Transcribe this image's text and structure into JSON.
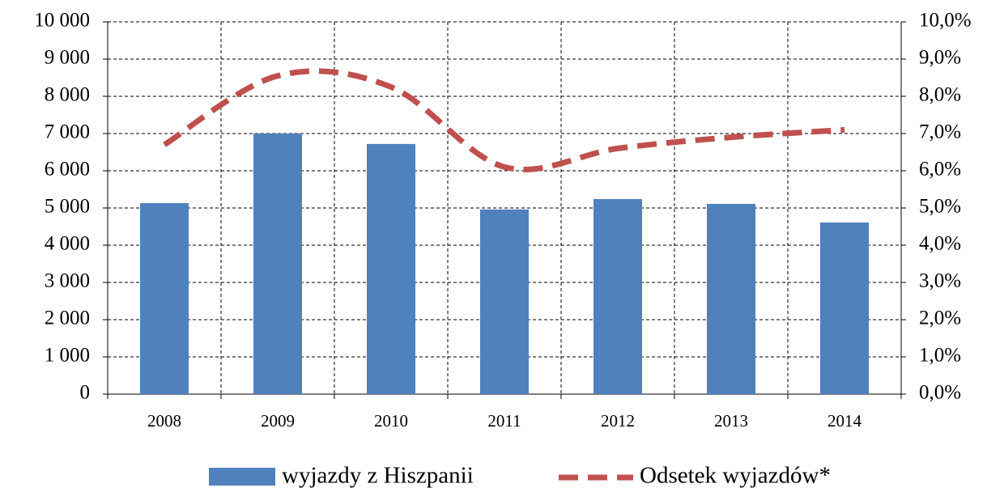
{
  "chart_data": {
    "type": "bar-line",
    "categories": [
      "2008",
      "2009",
      "2010",
      "2011",
      "2012",
      "2013",
      "2014"
    ],
    "series": [
      {
        "name": "wyjazdy z Hiszpanii",
        "color": "#4f81bd",
        "values": [
          5130,
          7000,
          6720,
          4960,
          5240,
          5110,
          4610
        ]
      },
      {
        "name": "Odsetek wyjazdów*",
        "color": "#c0504d",
        "axis": "y2",
        "values": [
          6.7,
          8.55,
          8.25,
          6.1,
          6.6,
          6.9,
          7.1
        ]
      }
    ],
    "ylim": [
      0,
      10000
    ],
    "yticks": [
      0,
      {
        "value": 1000,
        "label": "1 000"
      },
      {
        "value": 2000,
        "label": "2 000"
      },
      {
        "value": 3000,
        "label": "3 000"
      },
      {
        "value": 4000,
        "label": "4 000"
      },
      {
        "value": 5000,
        "label": "5 000"
      },
      {
        "value": 6000,
        "label": "6 000"
      },
      {
        "value": 7000,
        "label": "7 000"
      },
      {
        "value": 8000,
        "label": "8 000"
      },
      {
        "value": 9000,
        "label": "9 000"
      },
      {
        "value": 10000,
        "label": "10 000"
      }
    ],
    "y2lim": [
      0,
      10
    ],
    "y2ticks": [
      {
        "value": 0,
        "label": "0,0%"
      },
      {
        "value": 1,
        "label": "1,0%"
      },
      {
        "value": 2,
        "label": "2,0%"
      },
      {
        "value": 3,
        "label": "3,0%"
      },
      {
        "value": 4,
        "label": "4,0%"
      },
      {
        "value": 5,
        "label": "5,0%"
      },
      {
        "value": 6,
        "label": "6,0%"
      },
      {
        "value": 7,
        "label": "7,0%"
      },
      {
        "value": 8,
        "label": "8,0%"
      },
      {
        "value": 9,
        "label": "9,0%"
      },
      {
        "value": 10,
        "label": "10,0%"
      }
    ],
    "grid": true
  }
}
